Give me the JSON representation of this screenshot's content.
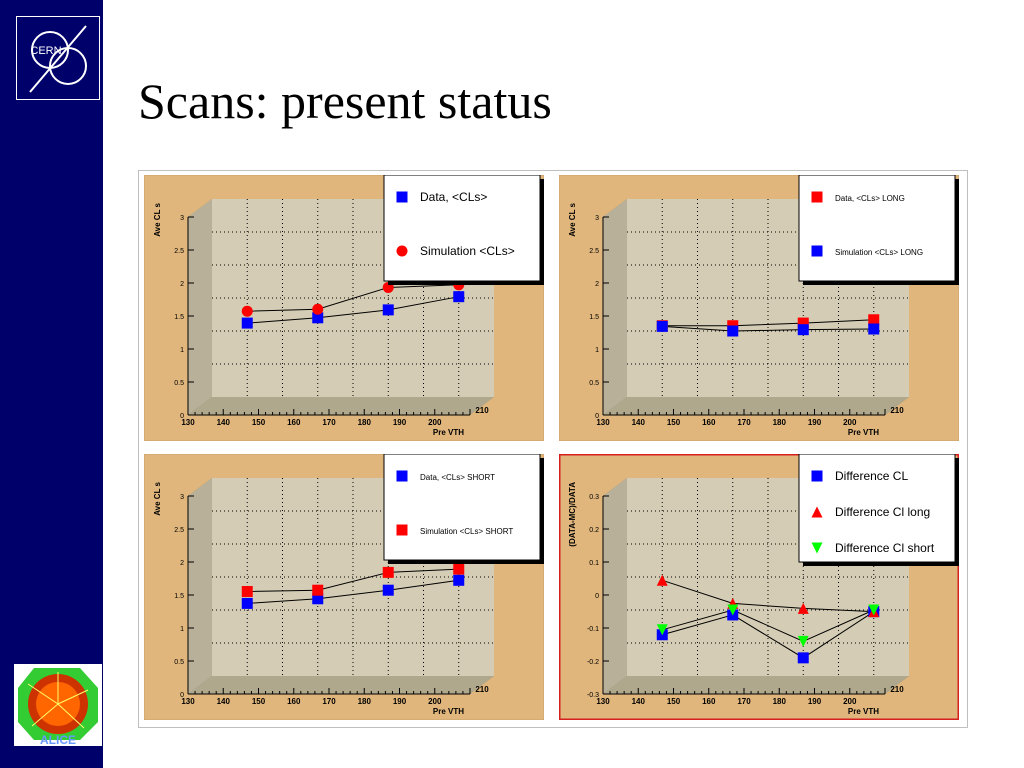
{
  "slide": {
    "title": "Scans: present status"
  },
  "logos": {
    "cern_text": "CERN",
    "alice_text": "ALICE"
  },
  "chart_data": [
    {
      "type": "scatter",
      "xlabel": "Pre VTH",
      "ylabel": "Ave CL s",
      "xlim": [
        130,
        210
      ],
      "ylim": [
        0,
        3
      ],
      "xticks": [
        130,
        140,
        150,
        160,
        170,
        180,
        190,
        200,
        210
      ],
      "yticks": [
        0,
        0.5,
        1,
        1.5,
        2,
        2.5,
        3
      ],
      "ytick_labels": [
        "0",
        "0.5",
        "1",
        "1.5",
        "2",
        "2.5",
        "3"
      ],
      "grid": true,
      "legend_position": "top-right",
      "legend_font": 12,
      "highlight": false,
      "x": [
        140,
        160,
        180,
        200
      ],
      "series": [
        {
          "name": "Data, <CLs>",
          "values": [
            1.12,
            1.2,
            1.32,
            1.52
          ],
          "color": "#0000ff",
          "marker": "square"
        },
        {
          "name": "Simulation <CLs>",
          "values": [
            1.3,
            1.33,
            1.66,
            1.7
          ],
          "color": "#ff0000",
          "marker": "circle"
        }
      ]
    },
    {
      "type": "scatter",
      "xlabel": "Pre VTH",
      "ylabel": "Ave CL s",
      "xlim": [
        130,
        210
      ],
      "ylim": [
        0,
        3
      ],
      "xticks": [
        130,
        140,
        150,
        160,
        170,
        180,
        190,
        200,
        210
      ],
      "yticks": [
        0,
        0.5,
        1,
        1.5,
        2,
        2.5,
        3
      ],
      "ytick_labels": [
        "0",
        "0.5",
        "1",
        "1.5",
        "2",
        "2.5",
        "3"
      ],
      "grid": true,
      "legend_position": "top-right",
      "legend_font": 8,
      "highlight": false,
      "x": [
        140,
        160,
        180,
        200
      ],
      "series": [
        {
          "name": "Data, <CLs> LONG",
          "values": [
            1.08,
            1.08,
            1.12,
            1.17
          ],
          "color": "#ff0000",
          "marker": "square"
        },
        {
          "name": "Simulation <CLs> LONG",
          "values": [
            1.07,
            1.0,
            1.02,
            1.03
          ],
          "color": "#0000ff",
          "marker": "square"
        }
      ]
    },
    {
      "type": "scatter",
      "xlabel": "Pre VTH",
      "ylabel": "Ave CL s",
      "xlim": [
        130,
        210
      ],
      "ylim": [
        0,
        3
      ],
      "xticks": [
        130,
        140,
        150,
        160,
        170,
        180,
        190,
        200,
        210
      ],
      "yticks": [
        0,
        0.5,
        1,
        1.5,
        2,
        2.5,
        3
      ],
      "ytick_labels": [
        "0",
        "0.5",
        "1",
        "1.5",
        "2",
        "2.5",
        "3"
      ],
      "grid": true,
      "legend_position": "top-right",
      "legend_font": 8,
      "highlight": false,
      "x": [
        140,
        160,
        180,
        200
      ],
      "series": [
        {
          "name": "Data, <CLs> SHORT",
          "values": [
            1.1,
            1.17,
            1.3,
            1.45
          ],
          "color": "#0000ff",
          "marker": "square"
        },
        {
          "name": "Simulation <CLs> SHORT",
          "values": [
            1.28,
            1.3,
            1.57,
            1.62
          ],
          "color": "#ff0000",
          "marker": "square"
        }
      ]
    },
    {
      "type": "scatter",
      "xlabel": "Pre VTH",
      "ylabel": "(DATA-MC)/DATA",
      "xlim": [
        130,
        210
      ],
      "ylim": [
        -0.3,
        0.3
      ],
      "xticks": [
        130,
        140,
        150,
        160,
        170,
        180,
        190,
        200,
        210
      ],
      "yticks": [
        -0.3,
        -0.2,
        -0.1,
        0,
        0.1,
        0.2,
        0.3
      ],
      "ytick_labels": [
        "-0.3",
        "-0.2",
        "-0.1",
        "0",
        "0.1",
        "0.2",
        "0.3"
      ],
      "grid": true,
      "legend_position": "top-right",
      "legend_font": 12,
      "highlight": true,
      "x": [
        140,
        160,
        180,
        200
      ],
      "series": [
        {
          "name": "Difference CL",
          "values": [
            -0.175,
            -0.115,
            -0.245,
            -0.105
          ],
          "color": "#0000ff",
          "marker": "square"
        },
        {
          "name": "Difference Cl long",
          "values": [
            -0.01,
            -0.08,
            -0.095,
            -0.105
          ],
          "color": "#ff0000",
          "marker": "triangle-up"
        },
        {
          "name": "Difference Cl short",
          "values": [
            -0.16,
            -0.1,
            -0.195,
            -0.1
          ],
          "color": "#00ff00",
          "marker": "triangle-down"
        }
      ]
    }
  ]
}
